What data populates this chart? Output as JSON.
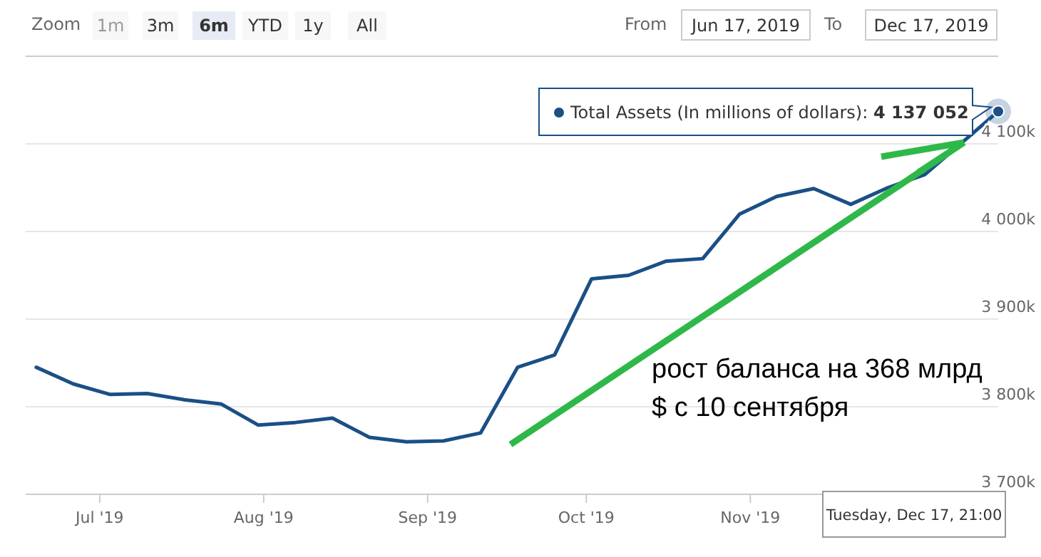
{
  "chart_data": {
    "type": "line",
    "x": [
      "2019-06-19",
      "2019-06-26",
      "2019-07-03",
      "2019-07-10",
      "2019-07-17",
      "2019-07-24",
      "2019-07-31",
      "2019-08-07",
      "2019-08-14",
      "2019-08-21",
      "2019-08-28",
      "2019-09-04",
      "2019-09-11",
      "2019-09-18",
      "2019-09-25",
      "2019-10-02",
      "2019-10-09",
      "2019-10-16",
      "2019-10-23",
      "2019-10-30",
      "2019-11-06",
      "2019-11-13",
      "2019-11-20",
      "2019-11-27",
      "2019-12-04",
      "2019-12-17T21:00"
    ],
    "series": [
      {
        "name": "Total Assets (In millions of dollars):",
        "color": "#1b4f86",
        "values": [
          3845000,
          3826000,
          3814000,
          3815000,
          3808000,
          3803000,
          3779000,
          3782000,
          3787000,
          3765000,
          3760000,
          3761000,
          3770000,
          3845000,
          3859000,
          3946000,
          3950000,
          3966000,
          3969000,
          4020000,
          4040000,
          4049000,
          4031000,
          4050000,
          4065000,
          4137052
        ],
        "value_labels": [
          null,
          null,
          null,
          null,
          null,
          null,
          null,
          null,
          null,
          null,
          null,
          null,
          null,
          null,
          null,
          null,
          null,
          null,
          null,
          null,
          null,
          null,
          null,
          null,
          null,
          "4 137 052"
        ]
      }
    ],
    "xlim": [
      "2019-06-17",
      "2019-12-17T21:00"
    ],
    "xticks": [
      {
        "value": "2019-07-01",
        "label": "Jul '19"
      },
      {
        "value": "2019-08-01",
        "label": "Aug '19"
      },
      {
        "value": "2019-09-01",
        "label": "Sep '19"
      },
      {
        "value": "2019-10-01",
        "label": "Oct '19"
      },
      {
        "value": "2019-11-01",
        "label": "Nov '19"
      }
    ],
    "ylim": [
      3700000,
      4200000
    ],
    "yticks": [
      {
        "value": 3700000,
        "label": "3 700k"
      },
      {
        "value": 3800000,
        "label": "3 800k"
      },
      {
        "value": 3900000,
        "label": "3 900k"
      },
      {
        "value": 4000000,
        "label": "4 000k"
      },
      {
        "value": 4100000,
        "label": "4 100k"
      }
    ],
    "grid": "y",
    "marker": "none",
    "line_style": "solid",
    "legend": "top right",
    "annotations": [
      "Zoom",
      "1m",
      "3m",
      "6m",
      "YTD",
      "1y",
      "All",
      "From",
      "Jun 17, 2019",
      "To",
      "Dec 17, 2019",
      "Tuesday, Dec 17, 21:00",
      "рост баланса на 368 млрд\n$ с 10 сентября"
    ]
  }
}
